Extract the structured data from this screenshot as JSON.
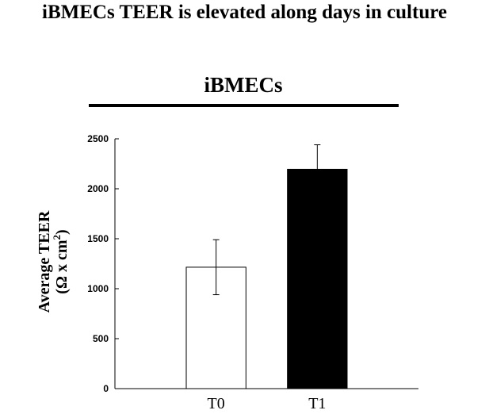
{
  "title": "iBMECs TEER is elevated along days in culture",
  "subtitle": "iBMECs",
  "chart_data": {
    "type": "bar",
    "title": "iBMECs",
    "categories": [
      "T0",
      "T1"
    ],
    "values": [
      1215,
      2195
    ],
    "errors": [
      275,
      245
    ],
    "bar_colors": [
      "#ffffff",
      "#000000"
    ],
    "ylabel_line1": "Average TEER",
    "ylabel_line2_prefix": "(Ω x cm",
    "ylabel_line2_sup": "2",
    "ylabel_line2_suffix": ")",
    "xlabel": "",
    "ylim": [
      0,
      2500
    ],
    "yticks": [
      "0",
      "500",
      "1000",
      "1500",
      "2000",
      "2500"
    ],
    "grid": false
  }
}
